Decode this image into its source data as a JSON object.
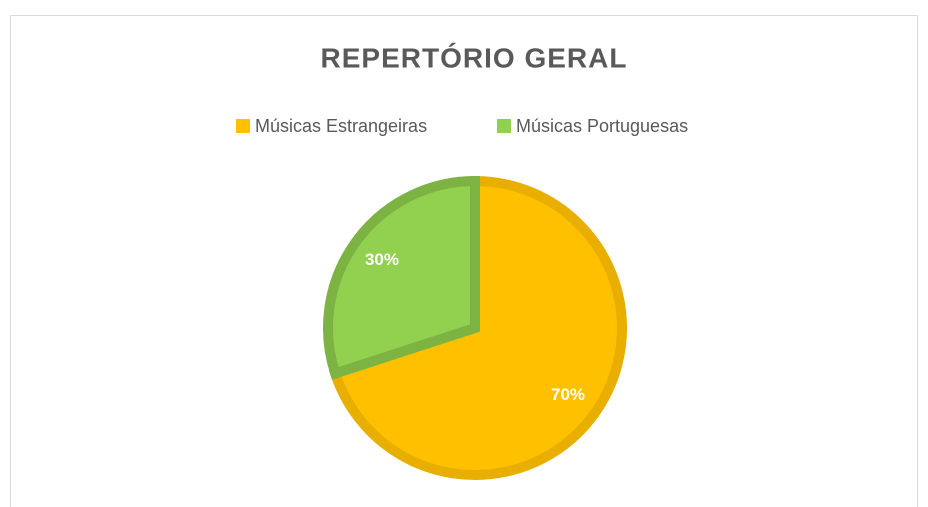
{
  "chart_data": {
    "type": "pie",
    "title": "REPERTÓRIO GERAL",
    "categories": [
      "Músicas Estrangeiras",
      "Músicas Portuguesas"
    ],
    "values": [
      70,
      30
    ],
    "value_labels": [
      "70%",
      "30%"
    ],
    "colors": [
      "#FFC000",
      "#92D050"
    ],
    "edge_colors": [
      "#E8AF00",
      "#7CB342"
    ]
  }
}
